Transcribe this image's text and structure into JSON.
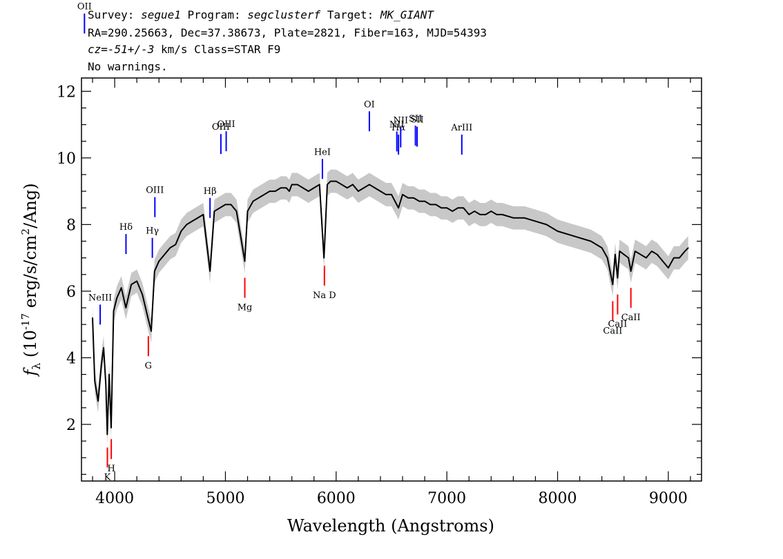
{
  "header": {
    "survey_label": "Survey:",
    "survey": "segue1",
    "program_label": "Program:",
    "program": "segclusterf",
    "target_label": "Target:",
    "target": "MK_GIANT",
    "line2": "RA=290.25663, Dec=37.38673, Plate=2821, Fiber=163, MJD=54393",
    "cz_prefix": "cz=",
    "cz_value": "-51+/-3",
    "line3_suffix": " km/s Class=STAR F9",
    "line4": "No warnings."
  },
  "chart_data": {
    "type": "line",
    "xlabel": "Wavelength (Angstroms)",
    "ylabel": "f_λ (10^-17 erg/s/cm^2/Ang)",
    "xlim": [
      3700,
      9300
    ],
    "ylim": [
      0.3,
      12.4
    ],
    "xticks": [
      4000,
      5000,
      6000,
      7000,
      8000,
      9000
    ],
    "yticks": [
      2,
      4,
      6,
      8,
      10,
      12
    ],
    "series": [
      {
        "color": "#000000",
        "x": [
          3800,
          3820,
          3850,
          3880,
          3900,
          3920,
          3933,
          3950,
          3968,
          3990,
          4020,
          4060,
          4101,
          4150,
          4200,
          4250,
          4300,
          4330,
          4360,
          4400,
          4450,
          4500,
          4550,
          4600,
          4650,
          4700,
          4750,
          4800,
          4861,
          4900,
          4950,
          5000,
          5050,
          5100,
          5150,
          5175,
          5200,
          5250,
          5300,
          5350,
          5400,
          5450,
          5500,
          5550,
          5577,
          5600,
          5650,
          5700,
          5750,
          5800,
          5850,
          5890,
          5896,
          5920,
          5950,
          6000,
          6050,
          6100,
          6150,
          6200,
          6250,
          6300,
          6350,
          6400,
          6450,
          6500,
          6563,
          6600,
          6650,
          6700,
          6750,
          6800,
          6850,
          6900,
          6950,
          7000,
          7050,
          7100,
          7150,
          7200,
          7250,
          7300,
          7350,
          7400,
          7450,
          7500,
          7600,
          7700,
          7800,
          7900,
          8000,
          8100,
          8200,
          8300,
          8400,
          8450,
          8498,
          8520,
          8542,
          8560,
          8600,
          8640,
          8662,
          8700,
          8750,
          8800,
          8850,
          8900,
          8950,
          9000,
          9050,
          9100,
          9150,
          9180
        ],
        "y": [
          5.2,
          3.3,
          2.7,
          3.8,
          4.3,
          3.2,
          1.7,
          3.5,
          1.9,
          5.4,
          5.8,
          6.1,
          5.5,
          6.2,
          6.3,
          5.9,
          5.2,
          4.8,
          6.6,
          6.9,
          7.1,
          7.3,
          7.4,
          7.8,
          8.0,
          8.1,
          8.2,
          8.3,
          6.6,
          8.4,
          8.5,
          8.6,
          8.6,
          8.4,
          7.4,
          6.9,
          8.4,
          8.7,
          8.8,
          8.9,
          9.0,
          9.0,
          9.1,
          9.1,
          9.0,
          9.2,
          9.2,
          9.1,
          9.0,
          9.1,
          9.2,
          7.0,
          7.4,
          9.2,
          9.3,
          9.3,
          9.2,
          9.1,
          9.2,
          9.0,
          9.1,
          9.2,
          9.1,
          9.0,
          8.9,
          8.9,
          8.5,
          8.9,
          8.8,
          8.8,
          8.7,
          8.7,
          8.6,
          8.6,
          8.5,
          8.5,
          8.4,
          8.5,
          8.5,
          8.3,
          8.4,
          8.3,
          8.3,
          8.4,
          8.3,
          8.3,
          8.2,
          8.2,
          8.1,
          8.0,
          7.8,
          7.7,
          7.6,
          7.5,
          7.3,
          7.0,
          6.2,
          7.1,
          6.4,
          7.2,
          7.1,
          7.0,
          6.6,
          7.2,
          7.1,
          7.0,
          7.2,
          7.1,
          6.9,
          6.7,
          7.0,
          7.0,
          7.2,
          7.3
        ]
      }
    ],
    "lines_blue": [
      {
        "label": "OII",
        "x": 3727
      },
      {
        "label": "NeIII",
        "x": 3869
      },
      {
        "label": "Hδ",
        "x": 4102
      },
      {
        "label": "Hγ",
        "x": 4340
      },
      {
        "label": "OIII",
        "x": 4363
      },
      {
        "label": "Hβ",
        "x": 4861
      },
      {
        "label": "OIII",
        "x": 4959
      },
      {
        "label": "OIII",
        "x": 5007
      },
      {
        "label": "HeI",
        "x": 5876
      },
      {
        "label": "OI",
        "x": 6300
      },
      {
        "label": "NII",
        "x": 6548
      },
      {
        "label": "Hα",
        "x": 6563
      },
      {
        "label": "NII",
        "x": 6583
      },
      {
        "label": "SII",
        "x": 6716
      },
      {
        "label": "SII",
        "x": 6731
      },
      {
        "label": "ArIII",
        "x": 7135
      }
    ],
    "lines_red": [
      {
        "label": "K",
        "x": 3934
      },
      {
        "label": "H",
        "x": 3969
      },
      {
        "label": "G",
        "x": 4304
      },
      {
        "label": "Mg",
        "x": 5175
      },
      {
        "label": "Na D",
        "x": 5894
      },
      {
        "label": "CaII",
        "x": 8498
      },
      {
        "label": "CaII",
        "x": 8542
      },
      {
        "label": "CaII",
        "x": 8662
      }
    ]
  }
}
